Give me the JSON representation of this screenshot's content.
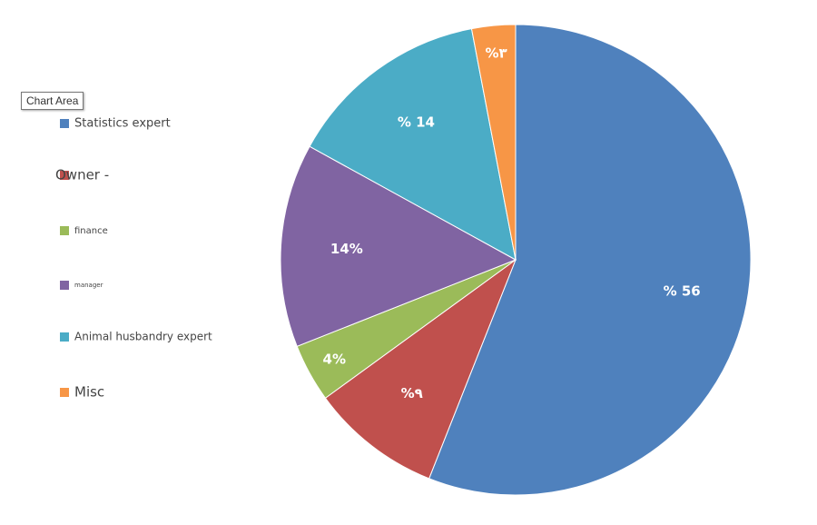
{
  "chart_data": {
    "type": "pie",
    "tooltip": "Chart Area",
    "categories": [
      "Statistics expert",
      "Owner -",
      "finance",
      "manager",
      "Animal husbandry expert",
      "Misc"
    ],
    "values": [
      56,
      9,
      4,
      14,
      14,
      3
    ],
    "value_labels": [
      "% 56",
      "%٩",
      "4%",
      "14%",
      "% 14",
      "%٣"
    ],
    "colors": [
      "#4f81bd",
      "#c0504d",
      "#9bbb59",
      "#8064a2",
      "#4bacc6",
      "#f79646"
    ]
  }
}
